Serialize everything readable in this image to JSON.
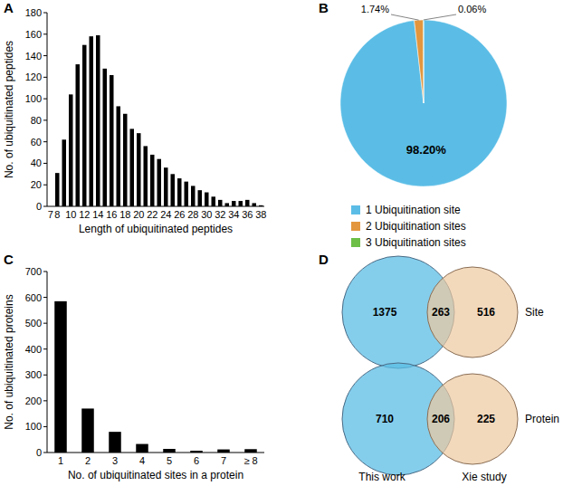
{
  "chart_data": [
    {
      "type": "bar",
      "title": "A",
      "x_label": "Length of ubiquitinated peptides",
      "y_label": "No. of ubiquitinated peptides",
      "categories": [
        "7",
        "8",
        null,
        "10",
        null,
        "12",
        null,
        "14",
        null,
        "16",
        null,
        "18",
        null,
        "20",
        null,
        "22",
        null,
        "24",
        null,
        "26",
        null,
        "28",
        null,
        "30",
        null,
        "32",
        null,
        "34",
        null,
        "36",
        null,
        "38"
      ],
      "values": [
        0,
        31,
        62,
        104,
        132,
        150,
        158,
        159,
        128,
        122,
        93,
        86,
        72,
        68,
        56,
        48,
        44,
        36,
        30,
        26,
        23,
        19,
        15,
        13,
        9,
        6,
        3,
        5,
        5,
        6,
        3,
        1
      ],
      "color": "#000000",
      "ylim": [
        0,
        180
      ],
      "yticks": [
        0,
        20,
        40,
        60,
        80,
        100,
        120,
        140,
        160,
        180
      ]
    },
    {
      "type": "pie",
      "title": "B",
      "categories": [
        "1 Ubiquitination site",
        "2 Ubiquitination sites",
        "3 Ubiquitination sites"
      ],
      "values": [
        98.2,
        1.74,
        0.06
      ],
      "value_labels": [
        "98.20%",
        "1.74%",
        "0.06%"
      ],
      "colors": [
        "#5bbde6",
        "#e3963e",
        "#6dbf48"
      ],
      "legend": "bottom",
      "data_labels": true
    },
    {
      "type": "bar",
      "title": "C",
      "x_label": "No. of ubiquitinated sites in a protein",
      "y_label": "No. of ubiquitinated proteins",
      "categories": [
        "1",
        "2",
        "3",
        "4",
        "5",
        "6",
        "7",
        "≥ 8"
      ],
      "values": [
        585,
        170,
        80,
        33,
        14,
        7,
        12,
        13
      ],
      "color": "#000000",
      "ylim": [
        0,
        700
      ],
      "yticks": [
        0,
        100,
        200,
        300,
        400,
        500,
        600,
        700
      ]
    },
    {
      "type": "venn",
      "title": "D",
      "sets": [
        "This work",
        "Xie study"
      ],
      "colors": [
        "#5bbde6",
        "#eec9a0"
      ],
      "diagrams": [
        {
          "label": "Site",
          "values": [
            1375,
            263,
            516
          ]
        },
        {
          "label": "Protein",
          "values": [
            710,
            206,
            225
          ]
        }
      ]
    }
  ]
}
